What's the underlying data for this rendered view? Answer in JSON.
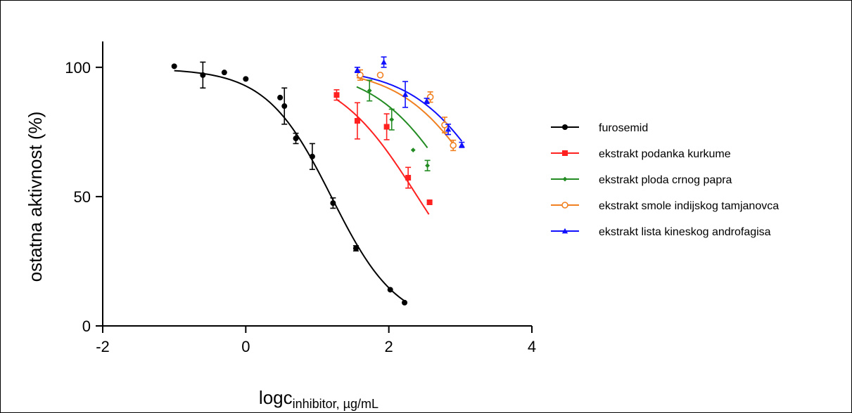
{
  "chart_data": {
    "type": "scatter",
    "title": "",
    "ylabel": "ostatna aktivnost (%)",
    "xlabel": {
      "main": "logc",
      "subscript": "inhibitor, µg/mL"
    },
    "xlim": [
      -2,
      4
    ],
    "ylim": [
      0,
      110
    ],
    "x_ticks": [
      -2,
      0,
      2,
      4
    ],
    "y_ticks": [
      0,
      50,
      100
    ],
    "x_tick_labels": [
      "-2",
      "0",
      "2",
      "4"
    ],
    "y_tick_labels": [
      "0",
      "50",
      "100"
    ],
    "grid": false,
    "legend_position": "right",
    "series": [
      {
        "name": "furosemid",
        "color": "#000000",
        "marker": "circle",
        "fit": {
          "top": 99.5,
          "bottom": 0,
          "logIC50": 1.2,
          "hill": 0.95,
          "x_from": -1.0,
          "x_to": 2.22
        },
        "points": [
          {
            "x": -1.0,
            "y": 100.4,
            "err": 0
          },
          {
            "x": -0.6,
            "y": 97,
            "err": 5
          },
          {
            "x": -0.3,
            "y": 98,
            "err": 0
          },
          {
            "x": 0.0,
            "y": 95.5,
            "err": 0
          },
          {
            "x": 0.48,
            "y": 88.3,
            "err": 0
          },
          {
            "x": 0.54,
            "y": 85,
            "err": 7
          },
          {
            "x": 0.7,
            "y": 72.5,
            "err": 2
          },
          {
            "x": 0.93,
            "y": 65.5,
            "err": 5
          },
          {
            "x": 1.22,
            "y": 47.5,
            "err": 2
          },
          {
            "x": 1.54,
            "y": 30,
            "err": 1
          },
          {
            "x": 2.02,
            "y": 14,
            "err": 0
          },
          {
            "x": 2.22,
            "y": 9,
            "err": 0
          }
        ]
      },
      {
        "name": "ekstrakt podanka kurkume",
        "color": "#ff2020",
        "marker": "square",
        "fit": {
          "top": 100,
          "bottom": 0,
          "logIC50": 2.4,
          "hill": 0.75,
          "x_from": 1.27,
          "x_to": 2.56
        },
        "points": [
          {
            "x": 1.27,
            "y": 89.3,
            "err": 2
          },
          {
            "x": 1.56,
            "y": 79.3,
            "err": 7
          },
          {
            "x": 1.97,
            "y": 77,
            "err": 5
          },
          {
            "x": 2.27,
            "y": 57.3,
            "err": 4
          },
          {
            "x": 2.57,
            "y": 47.8,
            "err": 0
          }
        ]
      },
      {
        "name": "ekstrakt ploda crnog papra",
        "color": "#228b22",
        "marker": "diamond",
        "fit": {
          "top": 100,
          "bottom": 0,
          "logIC50": 3.0,
          "hill": 0.75,
          "x_from": 1.55,
          "x_to": 2.54
        },
        "points": [
          {
            "x": 1.73,
            "y": 91,
            "err": 4
          },
          {
            "x": 2.04,
            "y": 79.8,
            "err": 4
          },
          {
            "x": 2.34,
            "y": 68,
            "err": 0
          },
          {
            "x": 2.54,
            "y": 62,
            "err": 2
          }
        ]
      },
      {
        "name": "ekstrakt smole indijskog tamjanovca",
        "color": "#f08020",
        "marker": "circle-open",
        "fit": {
          "top": 100,
          "bottom": 0,
          "logIC50": 3.4,
          "hill": 0.75,
          "x_from": 1.55,
          "x_to": 2.9
        },
        "points": [
          {
            "x": 1.6,
            "y": 97,
            "err": 2
          },
          {
            "x": 1.88,
            "y": 97,
            "err": 0
          },
          {
            "x": 2.58,
            "y": 88.5,
            "err": 2
          },
          {
            "x": 2.78,
            "y": 77.7,
            "err": 3
          },
          {
            "x": 2.9,
            "y": 69.8,
            "err": 2
          }
        ]
      },
      {
        "name": "ekstrakt lista kineskog androfagisa",
        "color": "#1010ff",
        "marker": "triangle",
        "fit": {
          "top": 100,
          "bottom": 0,
          "logIC50": 3.55,
          "hill": 0.75,
          "x_from": 1.55,
          "x_to": 3.02
        },
        "points": [
          {
            "x": 1.56,
            "y": 99,
            "err": 1
          },
          {
            "x": 1.93,
            "y": 102,
            "err": 2
          },
          {
            "x": 2.23,
            "y": 89.5,
            "err": 5
          },
          {
            "x": 2.53,
            "y": 87,
            "err": 1
          },
          {
            "x": 2.83,
            "y": 76,
            "err": 2
          },
          {
            "x": 3.02,
            "y": 70,
            "err": 1
          }
        ]
      }
    ]
  }
}
